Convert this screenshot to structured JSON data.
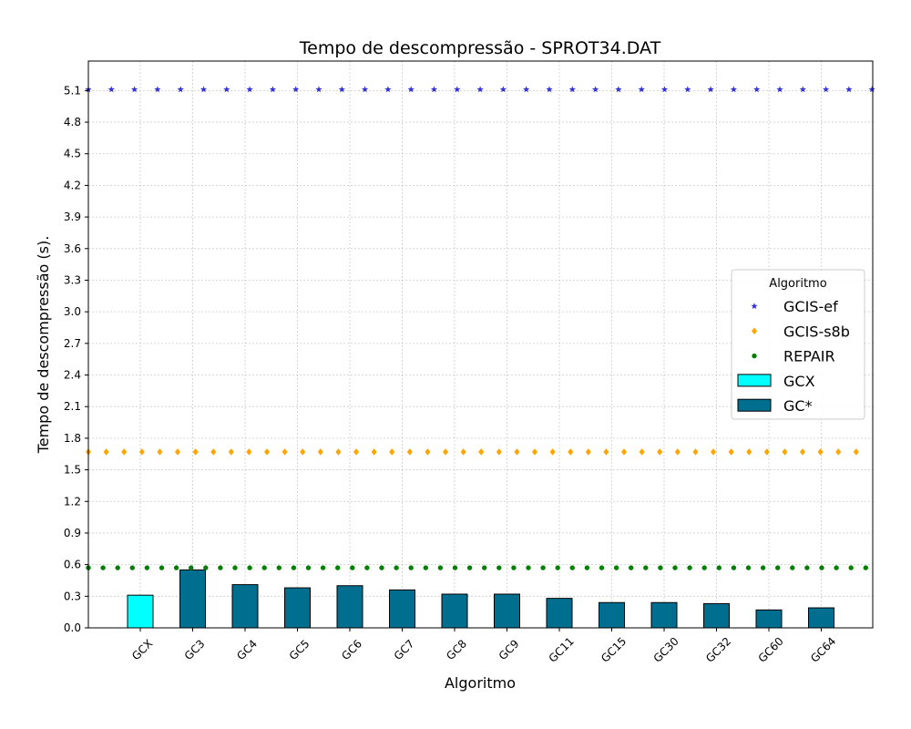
{
  "chart_data": {
    "type": "bar",
    "title": "Tempo de descompressão -  SPROT34.DAT",
    "xlabel": "Algoritmo",
    "ylabel": "Tempo de descompressão (s).",
    "categories": [
      "GCX",
      "GC3",
      "GC4",
      "GC5",
      "GC6",
      "GC7",
      "GC8",
      "GC9",
      "GC11",
      "GC15",
      "GC30",
      "GC32",
      "GC60",
      "GC64"
    ],
    "values": [
      0.31,
      0.55,
      0.41,
      0.38,
      0.4,
      0.36,
      0.32,
      0.32,
      0.28,
      0.24,
      0.24,
      0.23,
      0.17,
      0.19
    ],
    "bar_colors": [
      "#00ffff",
      "#006e8f",
      "#006e8f",
      "#006e8f",
      "#006e8f",
      "#006e8f",
      "#006e8f",
      "#006e8f",
      "#006e8f",
      "#006e8f",
      "#006e8f",
      "#006e8f",
      "#006e8f",
      "#006e8f"
    ],
    "ylim": [
      0,
      5.38
    ],
    "yticks": [
      0.0,
      0.3,
      0.6,
      0.9,
      1.2,
      1.5,
      1.8,
      2.1,
      2.4,
      2.7,
      3.0,
      3.3,
      3.6,
      3.9,
      4.2,
      4.5,
      4.8,
      5.1
    ],
    "grid": true,
    "reference_lines": [
      {
        "name": "GCIS-ef",
        "value": 5.11,
        "color": "#3333dd",
        "marker": "star"
      },
      {
        "name": "GCIS-s8b",
        "value": 1.67,
        "color": "#ffa500",
        "marker": "diamond"
      },
      {
        "name": "REPAIR",
        "value": 0.57,
        "color": "#008000",
        "marker": "circle"
      }
    ],
    "legend": {
      "title": "Algoritmo",
      "placement": "center-right",
      "entries": [
        {
          "label": "GCIS-ef",
          "kind": "star",
          "color": "#3333dd"
        },
        {
          "label": "GCIS-s8b",
          "kind": "diamond",
          "color": "#ffa500"
        },
        {
          "label": "REPAIR",
          "kind": "circle",
          "color": "#008000"
        },
        {
          "label": "GCX",
          "kind": "patch",
          "color": "#00ffff"
        },
        {
          "label": "GC*",
          "kind": "patch",
          "color": "#006e8f"
        }
      ]
    }
  }
}
